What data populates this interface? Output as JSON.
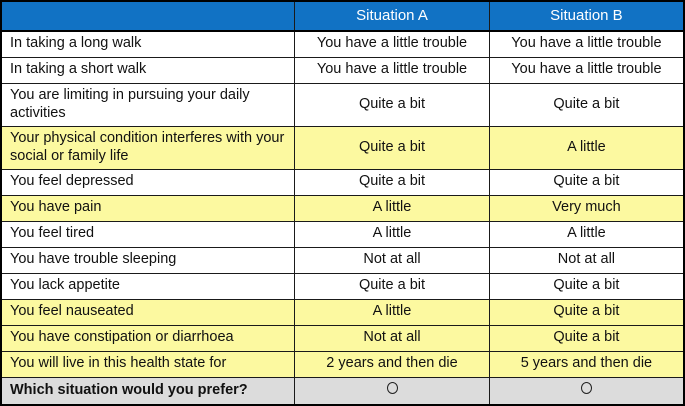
{
  "table": {
    "header": {
      "label_col": "",
      "situation_a": "Situation A",
      "situation_b": "Situation B"
    },
    "rows": [
      {
        "label": "In taking a long walk",
        "a": "You have a little trouble",
        "b": "You have a little trouble",
        "highlight": false
      },
      {
        "label": "In taking a short walk",
        "a": "You have a little trouble",
        "b": "You have a little trouble",
        "highlight": false
      },
      {
        "label": "You are limiting in pursuing your daily activities",
        "a": "Quite a bit",
        "b": "Quite a bit",
        "highlight": false
      },
      {
        "label": "Your physical condition interferes with your social or family life",
        "a": "Quite a bit",
        "b": "A little",
        "highlight": true
      },
      {
        "label": "You feel depressed",
        "a": "Quite a bit",
        "b": "Quite a bit",
        "highlight": false
      },
      {
        "label": "You have pain",
        "a": "A little",
        "b": "Very much",
        "highlight": true
      },
      {
        "label": "You feel tired",
        "a": "A little",
        "b": "A little",
        "highlight": false
      },
      {
        "label": "You have trouble sleeping",
        "a": "Not at all",
        "b": "Not at all",
        "highlight": false
      },
      {
        "label": "You lack appetite",
        "a": "Quite a bit",
        "b": "Quite a bit",
        "highlight": false
      },
      {
        "label": "You feel nauseated",
        "a": "A little",
        "b": "Quite a bit",
        "highlight": true
      },
      {
        "label": "You have constipation or diarrhoea",
        "a": "Not at all",
        "b": "Quite a bit",
        "highlight": true
      },
      {
        "label": "You will live in this health state for",
        "a": "2 years and then die",
        "b": "5 years and then die",
        "highlight": true
      }
    ],
    "footer": {
      "label": "Which situation would you prefer?",
      "radio_a_state": "unselected",
      "radio_b_state": "unselected"
    }
  },
  "colors": {
    "header_blue": "#1172C4",
    "highlight_yellow": "#FCF9A0",
    "footer_gray": "#DCDCDC",
    "border": "#1a1a1a"
  }
}
